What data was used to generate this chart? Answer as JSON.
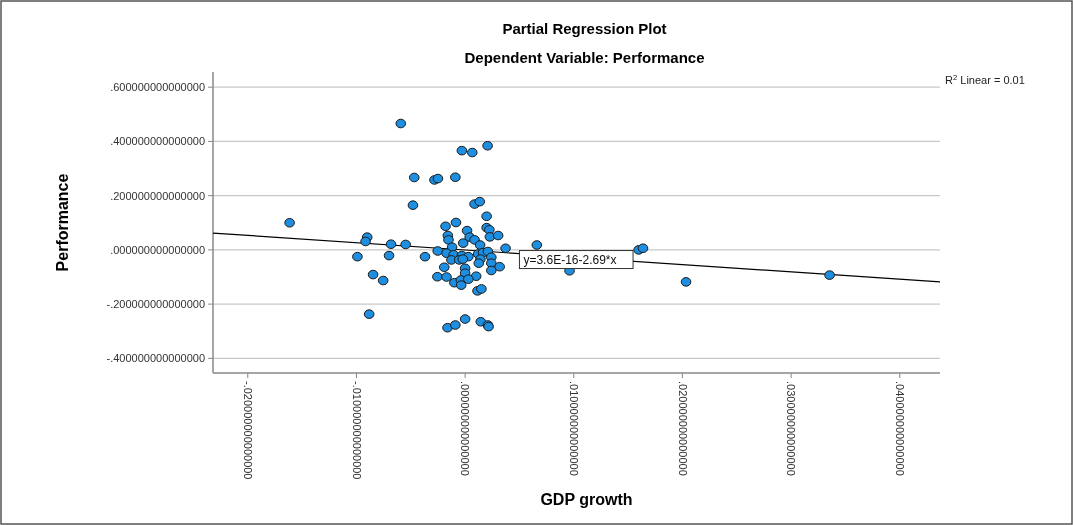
{
  "chart_data": {
    "type": "scatter",
    "title": "Partial Regression Plot",
    "subtitle": "Dependent Variable: Performance",
    "xlabel": "GDP growth",
    "ylabel": "Performance",
    "xlim": [
      -0.0232,
      0.0437
    ],
    "ylim": [
      -0.454,
      0.656
    ],
    "xticks": [
      {
        "value": -0.02,
        "label": "-.020000000000000"
      },
      {
        "value": -0.01,
        "label": "-.010000000000000"
      },
      {
        "value": 0,
        "label": ".000000000000000"
      },
      {
        "value": 0.01,
        "label": ".010000000000000"
      },
      {
        "value": 0.02,
        "label": ".020000000000000"
      },
      {
        "value": 0.03,
        "label": ".030000000000000"
      },
      {
        "value": 0.04,
        "label": ".040000000000000"
      }
    ],
    "yticks": [
      {
        "value": -0.4,
        "label": "-.400000000000000"
      },
      {
        "value": -0.2,
        "label": "-.200000000000000"
      },
      {
        "value": 0,
        "label": ".000000000000000"
      },
      {
        "value": 0.2,
        "label": ".200000000000000"
      },
      {
        "value": 0.4,
        "label": ".400000000000000"
      },
      {
        "value": 0.6,
        "label": ".600000000000000"
      }
    ],
    "grid": "y",
    "annotations": [
      {
        "text": "y=3.6E-16-2.69*x",
        "x": 0.005,
        "y": -0.0135
      },
      "R$^{2}$ Linear = 0.01"
    ],
    "series": [
      {
        "color": "#1e8fe0",
        "marker": "circle",
        "x": [
          -0.00592,
          -0.0003,
          0.00066,
          0.00207,
          -0.00468,
          -0.00282,
          -0.0025,
          -0.0009,
          -0.0048,
          0.00087,
          0.00135,
          0.00198,
          -0.0018,
          -0.00084,
          0.00198,
          0.00223,
          -0.00901,
          -0.00916,
          -0.00682,
          -0.00547,
          -0.00159,
          -0.00153,
          0.00018,
          0.00042,
          -0.00018,
          0.00087,
          0.00228,
          0.00304,
          0.00138,
          -0.0012,
          0.00372,
          0.0066,
          -0.00991,
          -0.007,
          -0.00369,
          -0.00252,
          -0.00171,
          -0.00105,
          -0.0003,
          0.0003,
          0.0012,
          0.00165,
          0.0021,
          -0.00126,
          -0.00054,
          -0.00021,
          0.00141,
          0.00241,
          0.00241,
          0.00126,
          -0.00847,
          -0.00754,
          -0.00192,
          0,
          0.00318,
          0,
          -0.00255,
          -0.00171,
          0.00102,
          0.00241,
          -0.00099,
          -0.00039,
          -0.00036,
          0.0003,
          0.00114,
          0.0015,
          -0.00883,
          -0.00162,
          -0.0009,
          0,
          0.00144,
          0.0021,
          0.00216,
          -0.01615,
          0.00961,
          0.01597,
          0.01637,
          0.02033,
          0.03354
        ],
        "values": [
          0.466,
          0.366,
          0.359,
          0.384,
          0.267,
          0.258,
          0.263,
          0.268,
          0.165,
          0.169,
          0.178,
          0.124,
          0.087,
          0.101,
          0.082,
          0.074,
          0.047,
          0.031,
          0.021,
          0.02,
          0.053,
          0.037,
          0.071,
          0.047,
          0.025,
          0.037,
          0.048,
          0.053,
          0.018,
          0.01,
          0.006,
          0.018,
          -0.025,
          -0.021,
          -0.025,
          -0.004,
          -0.012,
          -0.018,
          -0.021,
          -0.025,
          -0.015,
          -0.01,
          -0.006,
          -0.037,
          -0.037,
          -0.034,
          -0.034,
          -0.027,
          -0.049,
          -0.049,
          -0.091,
          -0.113,
          -0.064,
          -0.068,
          -0.062,
          -0.086,
          -0.099,
          -0.1,
          -0.097,
          -0.076,
          -0.121,
          -0.111,
          -0.13,
          -0.108,
          -0.151,
          -0.144,
          -0.237,
          -0.287,
          -0.277,
          -0.255,
          -0.265,
          -0.277,
          -0.283,
          0.1,
          -0.077,
          0,
          0.006,
          -0.118,
          -0.093
        ]
      },
      {
        "type": "line",
        "color": "#000000",
        "line_style": "solid",
        "x": [
          -0.0232,
          0.0437
        ],
        "values": [
          0.062,
          -0.118
        ]
      }
    ]
  }
}
